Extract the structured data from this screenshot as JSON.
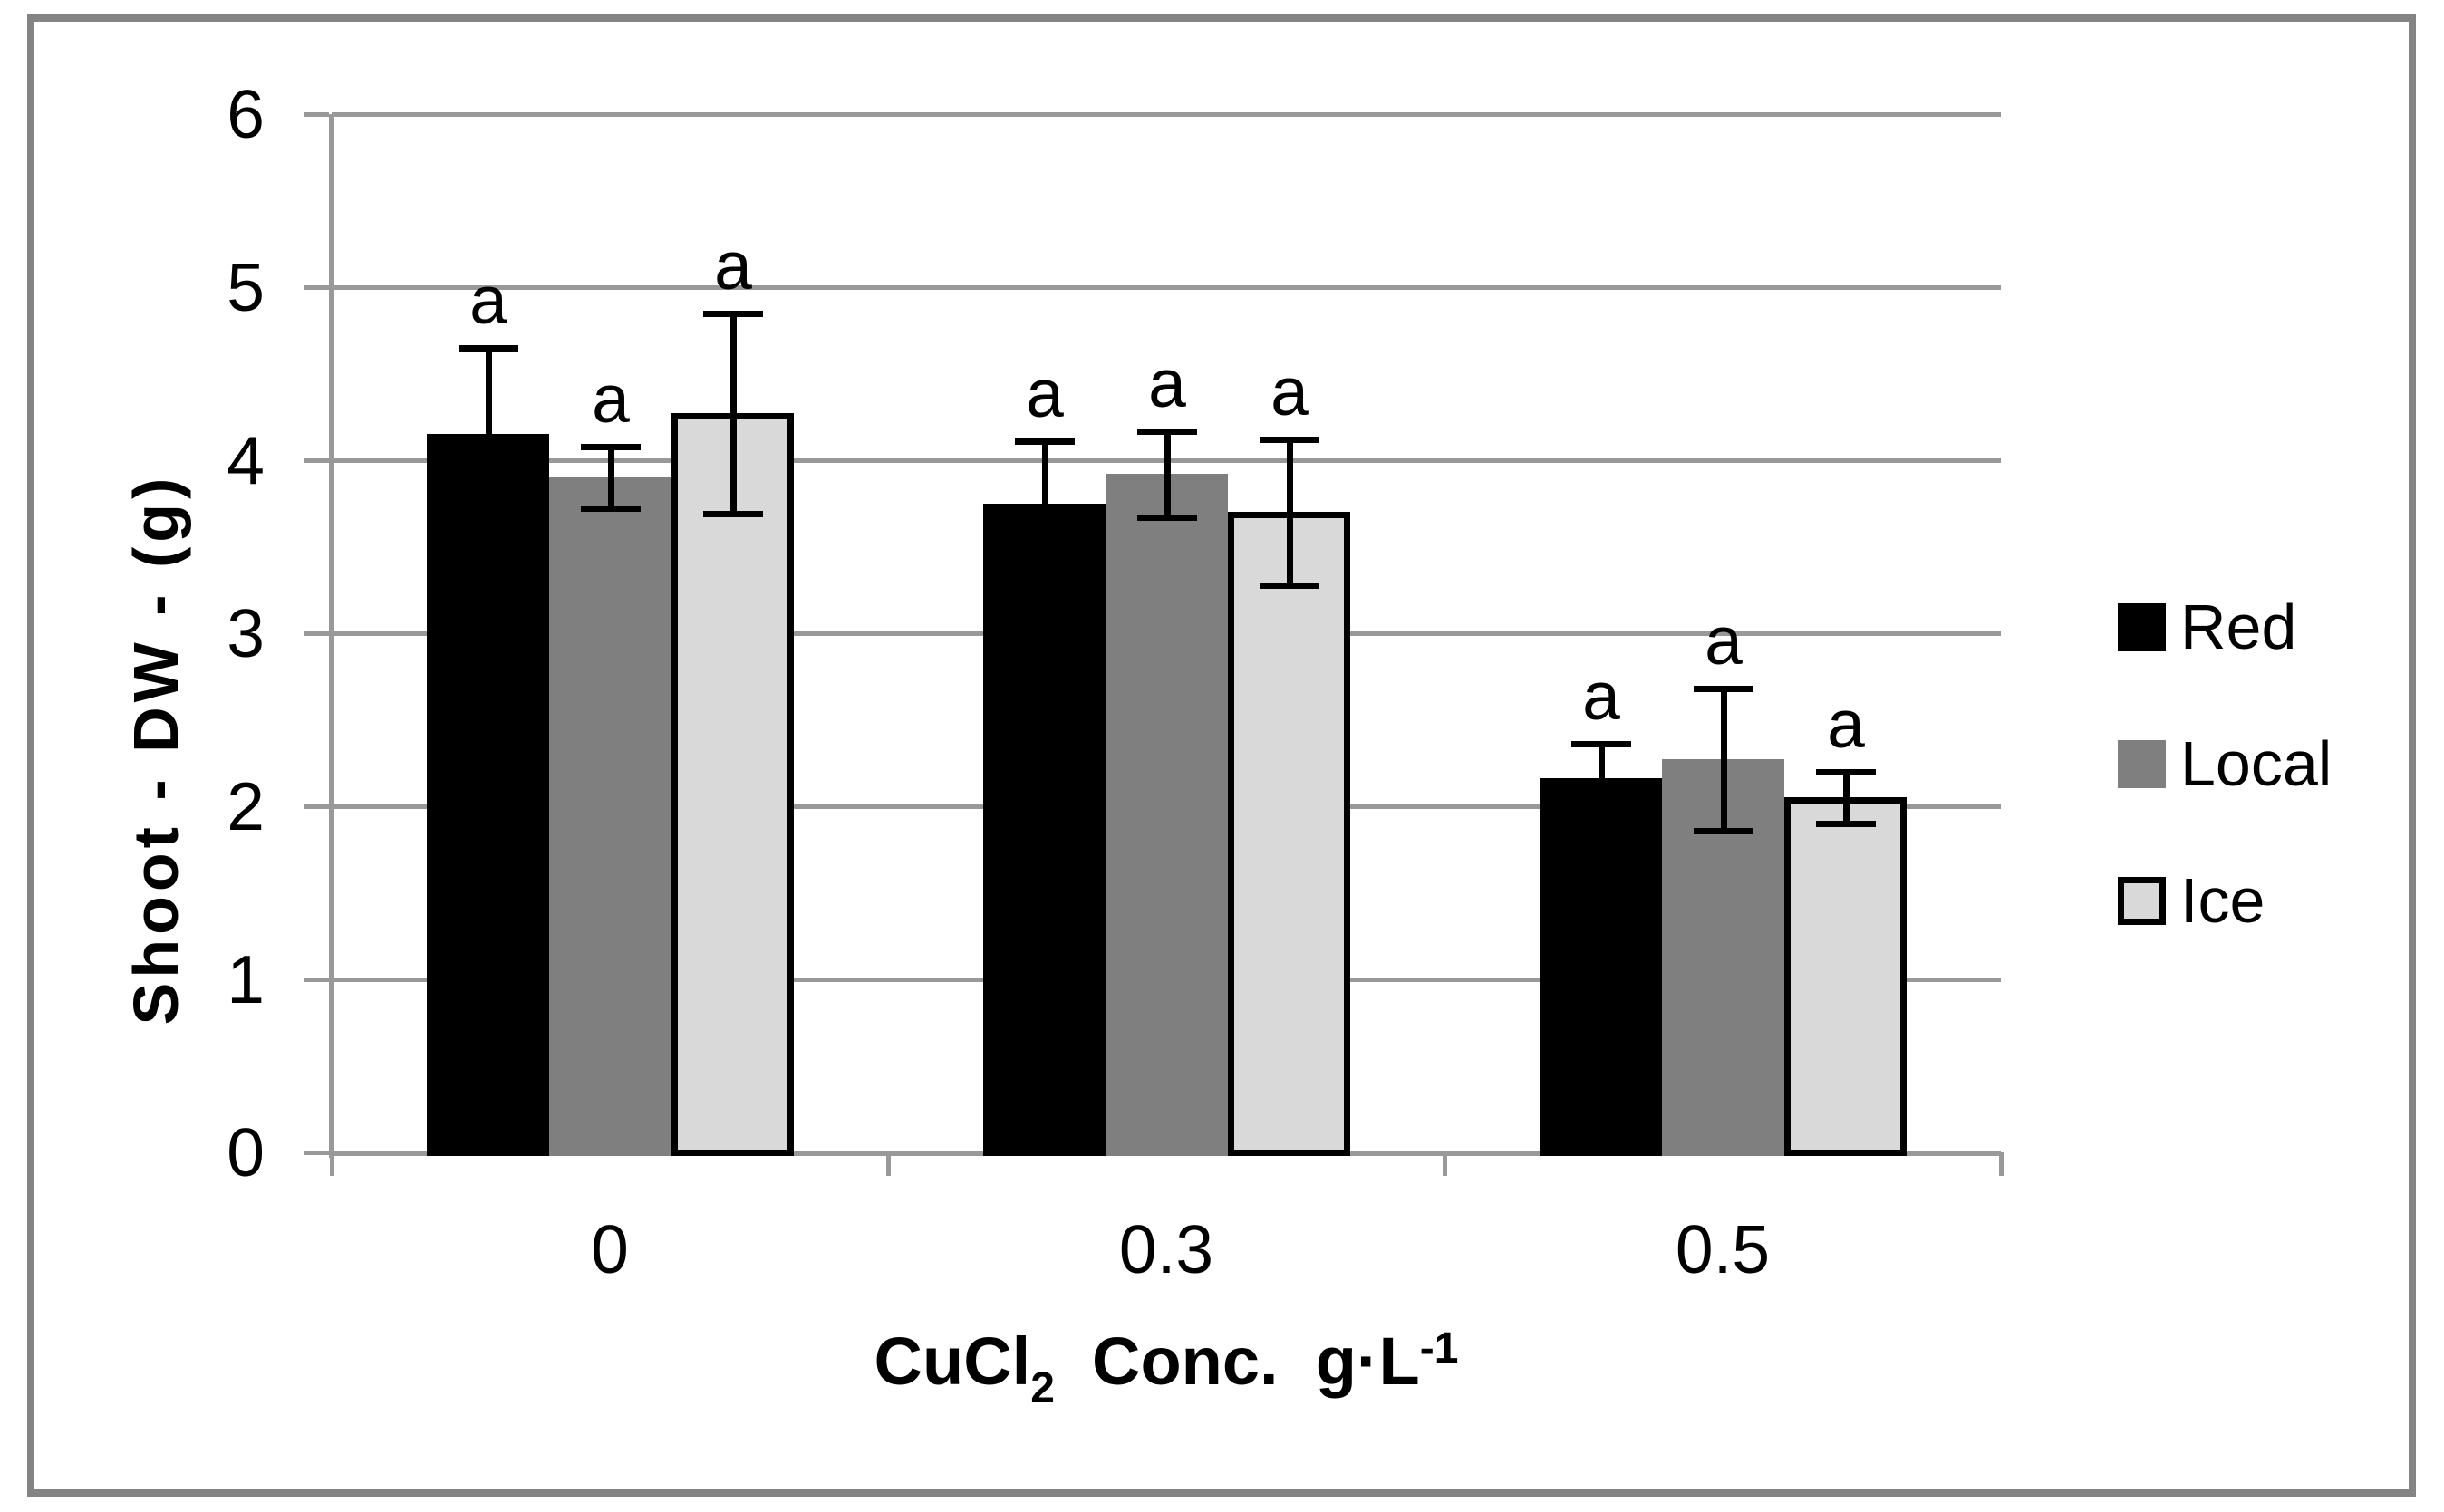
{
  "figure": {
    "background_color": "#ffffff",
    "border_color": "#848484",
    "gridline_color": "#999999",
    "error_bar_color": "#000000"
  },
  "chart_data": {
    "type": "bar",
    "title": "",
    "ylabel": "Shoot - DW - (g)",
    "xlabel_plain": "CuCl2  Conc.  g·L-1",
    "xlabel_parts": [
      {
        "text": "CuCl",
        "script": "normal"
      },
      {
        "text": "2",
        "script": "sub"
      },
      {
        "text": "  Conc.  g·L",
        "script": "normal"
      },
      {
        "text": "-1",
        "script": "sup"
      }
    ],
    "categories": [
      "0",
      "0.3",
      "0.5"
    ],
    "series": [
      {
        "name": "Red",
        "color": "#000000",
        "outlined": false,
        "values": [
          4.15,
          3.75,
          2.16
        ],
        "errors": [
          0.5,
          0.36,
          0.2
        ]
      },
      {
        "name": "Local",
        "color": "#7f7f7f",
        "outlined": false,
        "values": [
          3.9,
          3.92,
          2.27
        ],
        "errors": [
          0.18,
          0.25,
          0.41
        ]
      },
      {
        "name": "Ice",
        "color": "#d9d9d9",
        "outlined": true,
        "values": [
          4.27,
          3.7,
          2.05
        ],
        "errors": [
          0.58,
          0.42,
          0.15
        ]
      }
    ],
    "point_label": "a",
    "ylim": [
      0,
      6
    ],
    "ytick_labels": [
      "0",
      "1",
      "2",
      "3",
      "4",
      "5",
      "6"
    ],
    "grid": true,
    "legend_position": "right",
    "legend_labels": [
      "Red",
      "Local",
      "Ice"
    ]
  }
}
